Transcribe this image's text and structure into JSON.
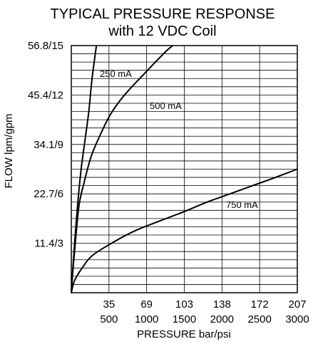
{
  "chart_data": {
    "type": "line",
    "title": "TYPICAL PRESSURE RESPONSE",
    "subtitle": "with 12 VDC Coil",
    "xlabel": "PRESSURE bar/psi",
    "ylabel": "FLOW lpm/gpm",
    "xlim": [
      0,
      207
    ],
    "ylim": [
      0,
      56.8
    ],
    "x_ticks": [
      {
        "value": 34.5,
        "bar": "35",
        "psi": "500"
      },
      {
        "value": 69,
        "bar": "69",
        "psi": "1000"
      },
      {
        "value": 103.5,
        "bar": "103",
        "psi": "1500"
      },
      {
        "value": 138,
        "bar": "138",
        "psi": "2000"
      },
      {
        "value": 172.5,
        "bar": "172",
        "psi": "2500"
      },
      {
        "value": 207,
        "bar": "207",
        "psi": "3000"
      }
    ],
    "y_ticks": [
      {
        "value": 11.36,
        "label": "11.4/3"
      },
      {
        "value": 22.72,
        "label": "22.7/6"
      },
      {
        "value": 34.08,
        "label": "34.1/9"
      },
      {
        "value": 45.44,
        "label": "45.4/12"
      },
      {
        "value": 56.8,
        "label": "56.8/15"
      }
    ],
    "grid": true,
    "series": [
      {
        "name": "250 mA",
        "x": [
          0,
          1,
          3,
          6,
          9,
          12,
          16,
          19,
          23
        ],
        "y": [
          0,
          3.8,
          11.4,
          20.8,
          28.4,
          34.1,
          41.6,
          49.2,
          56.8
        ]
      },
      {
        "name": "500 mA",
        "x": [
          0,
          1,
          3,
          7,
          12,
          18,
          26,
          35,
          45,
          55,
          66,
          77,
          88,
          93
        ],
        "y": [
          0,
          3.8,
          9.5,
          19.9,
          25.6,
          31.2,
          36.0,
          40.6,
          44.3,
          47.2,
          50.1,
          53.0,
          55.8,
          56.8
        ]
      },
      {
        "name": "750 mA",
        "x": [
          0,
          3,
          10,
          19,
          37,
          58,
          80,
          103,
          124,
          145,
          166,
          187,
          207
        ],
        "y": [
          0,
          2.8,
          5.7,
          8.5,
          11.4,
          14.2,
          16.4,
          18.6,
          20.8,
          22.7,
          24.6,
          26.5,
          28.4
        ]
      }
    ]
  }
}
